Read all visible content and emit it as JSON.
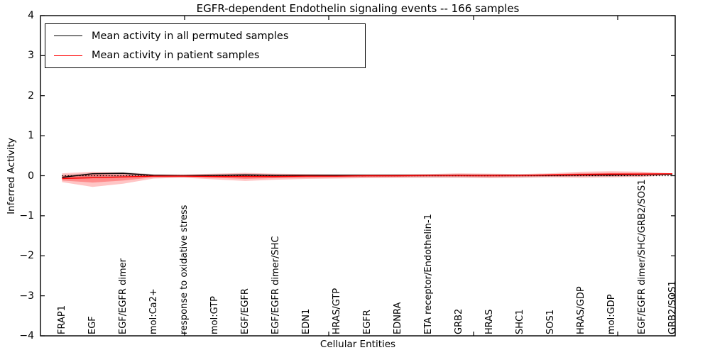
{
  "figure": {
    "title": "EGFR-dependent Endothelin signaling events -- 166 samples",
    "background_color": "#ffffff",
    "axis_color": "#000000"
  },
  "legend": {
    "entries": [
      {
        "label": "Mean activity in all permuted samples",
        "color": "#000000"
      },
      {
        "label": "Mean activity in patient samples",
        "color": "#ff0000"
      }
    ]
  },
  "chart_data": {
    "type": "line",
    "title": "EGFR-dependent Endothelin signaling events -- 166 samples",
    "xlabel": "Cellular Entities",
    "ylabel": "Inferred Activity",
    "ylim": [
      -4,
      4
    ],
    "ytick_labels": [
      "4",
      "3",
      "2",
      "1",
      "0",
      "−1",
      "−2",
      "−3",
      "−4"
    ],
    "grid": false,
    "legend_position": "upper left",
    "categories": [
      "FRAP1",
      "EGF",
      "EGF/EGFR dimer",
      "mol:Ca2+",
      "response to oxidative stress",
      "mol:GTP",
      "EGF/EGFR",
      "EGF/EGFR dimer/SHC",
      "EDN1",
      "HRAS/GTP",
      "EGFR",
      "EDNRA",
      "ETA receptor/Endothelin-1",
      "GRB2",
      "HRAS",
      "SHC1",
      "SOS1",
      "HRAS/GDP",
      "mol:GDP",
      "EGF/EGFR dimer/SHC/GRB2/SOS1",
      "GRB2/SOS1"
    ],
    "series": [
      {
        "name": "Mean activity in all permuted samples",
        "color": "#000000",
        "values": [
          -0.04,
          0.05,
          0.06,
          0.01,
          0.0,
          0.01,
          0.02,
          0.01,
          0.01,
          0.01,
          0.01,
          0.01,
          0.01,
          0.01,
          0.01,
          0.01,
          0.01,
          0.02,
          0.02,
          0.03,
          0.04
        ]
      },
      {
        "name": "Mean activity in patient samples",
        "color": "#ff0000",
        "values": [
          -0.07,
          -0.05,
          -0.03,
          -0.01,
          -0.01,
          -0.02,
          -0.02,
          -0.02,
          -0.01,
          -0.01,
          0.0,
          0.0,
          0.01,
          0.01,
          0.01,
          0.01,
          0.02,
          0.03,
          0.04,
          0.04,
          0.05
        ]
      }
    ],
    "bands": [
      {
        "name": "permuted-samples-spread",
        "color": "rgba(110,110,110,0.28)",
        "top": [
          0.02,
          0.07,
          0.09,
          0.04,
          0.03,
          0.04,
          0.05,
          0.04,
          0.04,
          0.04,
          0.04,
          0.04,
          0.04,
          0.04,
          0.04,
          0.04,
          0.04,
          0.05,
          0.05,
          0.06,
          0.06
        ],
        "bottom": [
          -0.09,
          -0.06,
          -0.04,
          -0.04,
          -0.04,
          -0.04,
          -0.05,
          -0.05,
          -0.04,
          -0.04,
          -0.04,
          -0.04,
          -0.04,
          -0.04,
          -0.04,
          -0.04,
          -0.03,
          -0.02,
          -0.02,
          -0.01,
          0.02
        ]
      },
      {
        "name": "patient-samples-spread-outer",
        "color": "rgba(255,45,45,0.28)",
        "top": [
          0.06,
          0.1,
          0.08,
          0.03,
          0.03,
          0.05,
          0.07,
          0.05,
          0.04,
          0.03,
          0.03,
          0.03,
          0.04,
          0.06,
          0.05,
          0.04,
          0.06,
          0.1,
          0.11,
          0.1,
          0.06
        ],
        "bottom": [
          -0.16,
          -0.28,
          -0.2,
          -0.07,
          -0.05,
          -0.09,
          -0.13,
          -0.1,
          -0.08,
          -0.07,
          -0.06,
          -0.05,
          -0.05,
          -0.05,
          -0.06,
          -0.05,
          -0.04,
          -0.05,
          -0.04,
          -0.03,
          0.02
        ]
      },
      {
        "name": "patient-samples-spread-inner",
        "color": "rgba(255,45,45,0.38)",
        "top": [
          0.0,
          0.03,
          0.02,
          0.01,
          0.01,
          0.01,
          0.02,
          0.01,
          0.01,
          0.01,
          0.01,
          0.02,
          0.02,
          0.03,
          0.02,
          0.02,
          0.04,
          0.06,
          0.07,
          0.07,
          0.06
        ],
        "bottom": [
          -0.12,
          -0.17,
          -0.12,
          -0.04,
          -0.03,
          -0.05,
          -0.08,
          -0.06,
          -0.05,
          -0.04,
          -0.03,
          -0.03,
          -0.02,
          -0.02,
          -0.03,
          -0.02,
          -0.01,
          -0.01,
          0.0,
          0.01,
          0.03
        ]
      }
    ],
    "zero_line": {
      "y": 0,
      "style": "dotted",
      "color": "#000000"
    }
  }
}
